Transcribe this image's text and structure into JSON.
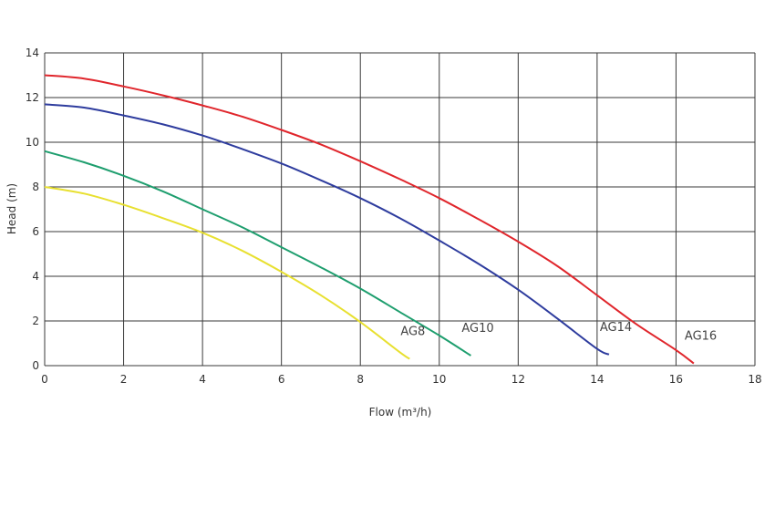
{
  "chart_data": {
    "type": "line",
    "xlabel": "Flow (m³/h)",
    "ylabel": "Head (m)",
    "xlim": [
      0,
      18
    ],
    "ylim": [
      0,
      14
    ],
    "x_ticks": [
      "0",
      "2",
      "4",
      "6",
      "8",
      "10",
      "12",
      "14",
      "16",
      "18"
    ],
    "y_ticks": [
      "0",
      "2",
      "4",
      "6",
      "8",
      "10",
      "12",
      "14"
    ],
    "grid": true,
    "series": [
      {
        "name": "AG8",
        "color": "#e8e030",
        "x": [
          0,
          1,
          2,
          3,
          4,
          5,
          6,
          7,
          8,
          9,
          9.25
        ],
        "y": [
          8.0,
          7.7,
          7.2,
          6.6,
          5.95,
          5.15,
          4.2,
          3.15,
          1.95,
          0.6,
          0.3
        ]
      },
      {
        "name": "AG10",
        "color": "#1e9e6e",
        "x": [
          0,
          1,
          2,
          3,
          4,
          5,
          6,
          7,
          8,
          9,
          10,
          10.8
        ],
        "y": [
          9.6,
          9.1,
          8.5,
          7.8,
          7.0,
          6.2,
          5.3,
          4.4,
          3.45,
          2.4,
          1.35,
          0.45
        ]
      },
      {
        "name": "AG14",
        "color": "#2e3c9e",
        "x": [
          0,
          1,
          2,
          3,
          4,
          5,
          6,
          7,
          8,
          9,
          10,
          11,
          12,
          13,
          14,
          14.3
        ],
        "y": [
          11.7,
          11.55,
          11.2,
          10.8,
          10.3,
          9.7,
          9.05,
          8.3,
          7.5,
          6.6,
          5.6,
          4.55,
          3.4,
          2.1,
          0.75,
          0.5
        ]
      },
      {
        "name": "AG16",
        "color": "#e0262c",
        "x": [
          0,
          1,
          2,
          3,
          4,
          5,
          6,
          7,
          8,
          9,
          10,
          11,
          12,
          13,
          14,
          15,
          16,
          16.45
        ],
        "y": [
          13.0,
          12.85,
          12.5,
          12.1,
          11.65,
          11.15,
          10.55,
          9.9,
          9.15,
          8.35,
          7.5,
          6.55,
          5.55,
          4.45,
          3.15,
          1.85,
          0.7,
          0.1
        ]
      }
    ]
  }
}
